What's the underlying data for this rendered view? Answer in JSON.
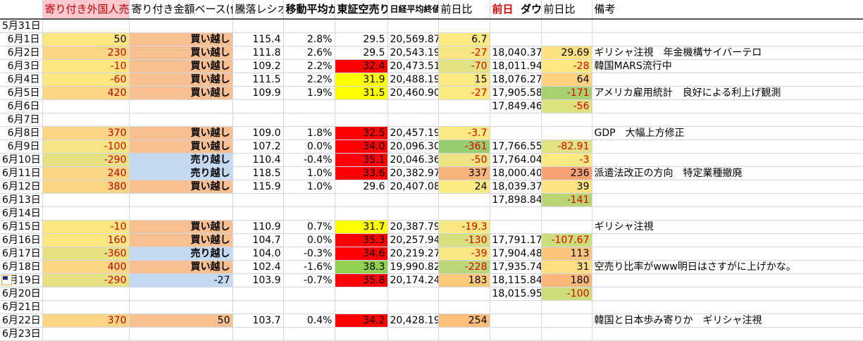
{
  "headers": {
    "a": "",
    "b": "寄り付き外国人売り買い(万株)",
    "c": "寄り付き金額ベース(億)",
    "d": "騰落レシオ",
    "e": "移動平均かい離",
    "f": "東証空売り比率",
    "g": "日経平均終値",
    "h": "前日比",
    "i_prefix": "前日",
    "i": "ダウ終値",
    "j": "前日比",
    "k": "備考"
  },
  "colors": {
    "header_b_bg": "#ffc7ce",
    "negative_text": "#e00000",
    "buy_bg": "#f8c090",
    "sell_bg": "#c5d9f0"
  },
  "rows": [
    {
      "date": "5月31日"
    },
    {
      "date": "6月1日",
      "b": "50",
      "bbg": "#fde57f",
      "bred": false,
      "c": "買い越し",
      "cbg": "#f8c090",
      "d": "115.4",
      "e": "2.8%",
      "f": "29.5",
      "g": "20,569.87",
      "h": "6.7",
      "hbg": "#fde981"
    },
    {
      "date": "6月2日",
      "b": "230",
      "bbg": "#fcd584",
      "c": "買い越し",
      "cbg": "#f8c090",
      "d": "111.8",
      "e": "2.6%",
      "f": "29.5",
      "g": "20,543.19",
      "h": "-27",
      "hbg": "#f5e683",
      "i": "18,040.37",
      "j": "29.69",
      "jbg": "#fde07f",
      "k": "ギリシャ注視　年金機構サイバーテロ"
    },
    {
      "date": "6月3日",
      "b": "-10",
      "bbg": "#fde57f",
      "c": "買い越し",
      "cbg": "#f8c090",
      "d": "109.2",
      "e": "2.2%",
      "f": "32.4",
      "fbg": "#ff0000",
      "g": "20,473.51",
      "h": "-70",
      "hbg": "#e5e283",
      "i": "18,011.94",
      "j": "-28",
      "jbg": "#fde881",
      "k": "韓国MARS流行中"
    },
    {
      "date": "6月4日",
      "b": "-60",
      "bbg": "#fde57f",
      "c": "買い越し",
      "cbg": "#f8c090",
      "d": "111.5",
      "e": "2.2%",
      "f": "31.9",
      "fbg": "#ffff00",
      "g": "20,488.19",
      "h": "15",
      "hbg": "#fde981",
      "i": "18,076.27",
      "j": "64",
      "jbg": "#fed27f"
    },
    {
      "date": "6月5日",
      "b": "420",
      "bbg": "#fcd584",
      "c": "買い越し",
      "cbg": "#f8c090",
      "d": "109.9",
      "e": "1.9%",
      "f": "31.5",
      "fbg": "#ffff00",
      "g": "20,460.90",
      "h": "-27",
      "hbg": "#fde981",
      "i": "17,905.58",
      "j": "-171",
      "jbg": "#a9d06e",
      "k": "アメリカ雇用統計　良好による利上げ観測"
    },
    {
      "date": "6月6日",
      "i": "17,849.46",
      "j": "-56",
      "jbg": "#dde27f"
    },
    {
      "date": "6月7日"
    },
    {
      "date": "6月8日",
      "b": "370",
      "bbg": "#fcd584",
      "c": "買い越し",
      "cbg": "#f8c090",
      "d": "109.0",
      "e": "1.8%",
      "f": "32.5",
      "fbg": "#ff0000",
      "g": "20,457.19",
      "h": "-3.7",
      "hbg": "#fde981",
      "k": "GDP　大幅上方修正"
    },
    {
      "date": "6月9日",
      "b": "-100",
      "bbg": "#f5e683",
      "c": "買い越し",
      "cbg": "#f8c090",
      "d": "107.2",
      "e": "0.0%",
      "f": "34.0",
      "fbg": "#ff0000",
      "g": "20,096.30",
      "h": "-361",
      "hbg": "#97cc6f",
      "i": "17,766.55",
      "j": "-82.91",
      "jbg": "#e2e282"
    },
    {
      "date": "6月10日",
      "b": "-290",
      "bbg": "#e6e283",
      "c": "売り越し",
      "cbg": "#c5d9f0",
      "d": "110.4",
      "e": "-0.4%",
      "f": "35.1",
      "fbg": "#ff0000",
      "g": "20,046.36",
      "h": "-50",
      "hbg": "#ede584",
      "i": "17,764.04",
      "j": "-3",
      "jbg": "#fde981"
    },
    {
      "date": "6月11日",
      "b": "240",
      "bbg": "#fcd584",
      "c": "売り越し",
      "cbg": "#c5d9f0",
      "d": "118.5",
      "e": "1.0%",
      "f": "33.6",
      "fbg": "#ff0000",
      "g": "20,382.97",
      "h": "337",
      "hbg": "#f9b47a",
      "i": "18,000.40",
      "j": "236",
      "jbg": "#f8a273",
      "k": "派遣法改正の方向　特定業種撤廃"
    },
    {
      "date": "6月12日",
      "b": "380",
      "bbg": "#fcd584",
      "c": "買い越し",
      "cbg": "#f8c090",
      "d": "115.9",
      "e": "1.0%",
      "f": "29.6",
      "g": "20,407.08",
      "h": "24",
      "hbg": "#fde981",
      "i": "18,039.37",
      "j": "39",
      "jbg": "#fde27f"
    },
    {
      "date": "6月13日",
      "i": "17,898.84",
      "j": "-141",
      "jbg": "#b8d574"
    },
    {
      "date": "6月14日"
    },
    {
      "date": "6月15日",
      "b": "-10",
      "bbg": "#fde57f",
      "c": "買い越し",
      "cbg": "#f8c090",
      "d": "110.9",
      "e": "0.7%",
      "f": "31.7",
      "fbg": "#ffff00",
      "g": "20,387.79",
      "h": "-19.3",
      "hbg": "#f8e882",
      "k": "ギリシャ注視"
    },
    {
      "date": "6月16日",
      "b": "160",
      "bbg": "#fde57f",
      "c": "買い越し",
      "cbg": "#f8c090",
      "d": "104.7",
      "e": "0.0%",
      "f": "35.3",
      "fbg": "#ff0000",
      "g": "20,257.94",
      "h": "-130",
      "hbg": "#d5df7e",
      "i": "17,791.17",
      "j": "-107.67",
      "jbg": "#cddd7a"
    },
    {
      "date": "6月17日",
      "b": "-360",
      "bbg": "#e6e283",
      "c": "売り越し",
      "cbg": "#c5d9f0",
      "d": "104.0",
      "e": "-0.3%",
      "f": "34.6",
      "fbg": "#ff0000",
      "g": "20,219.27",
      "h": "-39",
      "hbg": "#f8e882",
      "i": "17,904.48",
      "j": "113",
      "jbg": "#fcc37c"
    },
    {
      "date": "6月18日",
      "b": "400",
      "bbg": "#fcd584",
      "c": "買い越し",
      "cbg": "#f8c090",
      "d": "102.4",
      "e": "-1.6%",
      "f": "38.3",
      "fbg": "#92d050",
      "g": "19,990.82",
      "h": "-228",
      "hbg": "#bcd777",
      "i": "17,935.74",
      "j": "31",
      "jbg": "#fdde80",
      "k": "空売り比率がwww明日はさすがに上げかな。"
    },
    {
      "date": "6月19日",
      "b": "-290",
      "bbg": "#e6e283",
      "c": "-27",
      "cbg": "#c5d9f0",
      "cnum": true,
      "d": "103.9",
      "e": "-0.7%",
      "f": "35.8",
      "fbg": "#ff0000",
      "g": "20,174.24",
      "h": "183",
      "hbg": "#fcc97b",
      "i": "18,115.84",
      "j": "180",
      "jbg": "#fbb77a"
    },
    {
      "date": "6月20日",
      "i": "18,015.95",
      "j": "-100",
      "jbg": "#cddd7a"
    },
    {
      "date": "6月21日"
    },
    {
      "date": "6月22日",
      "b": "370",
      "bbg": "#fcd584",
      "c": "50",
      "cbg": "#f8c090",
      "cnum": true,
      "d": "103.7",
      "e": "0.4%",
      "f": "34.2",
      "fbg": "#ff0000",
      "g": "20,428.19",
      "h": "254",
      "hbg": "#fbbf7b",
      "k": "韓国と日本歩み寄りか　ギリシャ注視"
    },
    {
      "date": "6月23日"
    }
  ]
}
